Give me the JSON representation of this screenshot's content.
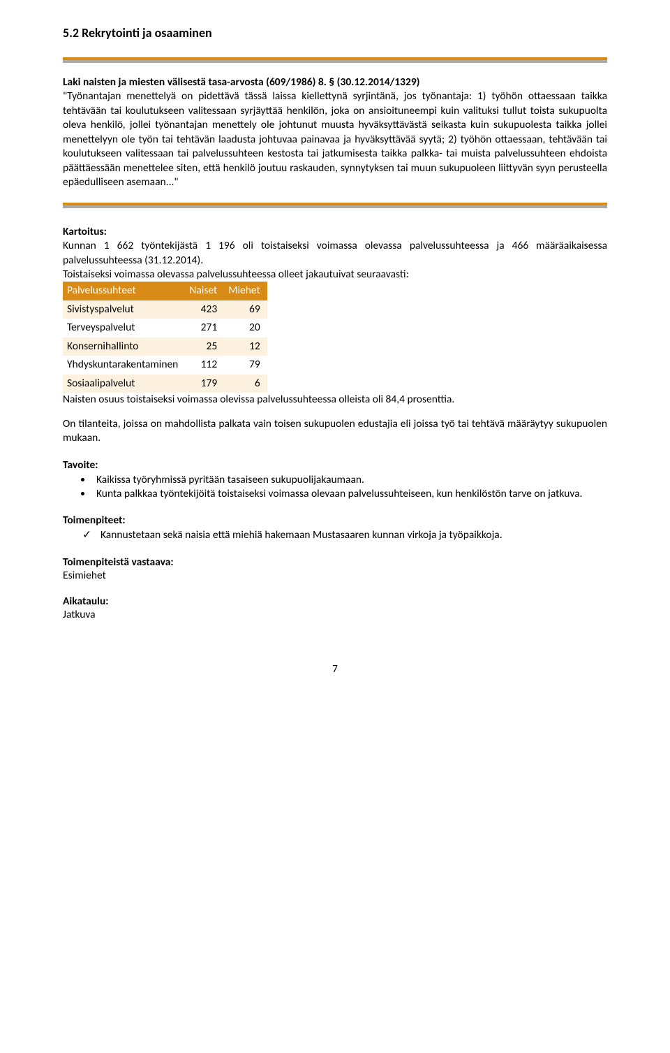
{
  "heading": "5.2  Rekrytointi ja osaaminen",
  "quote": {
    "title": "Laki naisten ja miesten välisestä tasa-arvosta (609/1986) 8. § (30.12.2014/1329)",
    "body": "\"Työnantajan menettelyä on pidettävä tässä laissa kiellettynä syrjintänä, jos työnantaja: 1) työhön ottaessaan taikka tehtävään tai koulutukseen valitessaan syrjäyttää henkilön, joka on ansioituneempi kuin valituksi tullut toista sukupuolta oleva henkilö, jollei työnantajan menettely ole johtunut muusta hyväksyttävästä seikasta kuin sukupuolesta taikka jollei menettelyyn ole työn tai tehtävän laadusta johtuvaa painavaa ja hyväksyttävää syytä; 2) työhön ottaessaan, tehtävään tai koulutukseen valitessaan tai palvelussuhteen kestosta tai jatkumisesta taikka palkka- tai muista palvelussuhteen ehdoista päättäessään menettelee siten, että henkilö joutuu raskauden, synnytyksen tai muun sukupuoleen liittyvän syyn perusteella epäedulliseen asemaan...\""
  },
  "kartoitus": {
    "label": "Kartoitus:",
    "intro": "Kunnan 1 662 työntekijästä 1 196 oli toistaiseksi voimassa olevassa palvelussuhteessa ja 466 määräaikaisessa palvelussuhteessa (31.12.2014).",
    "intro2": "Toistaiseksi voimassa olevassa palvelussuhteessa olleet jakautuivat seuraavasti:",
    "table": {
      "header_bg": "#d98b18",
      "header_color": "#ffffff",
      "alt_row_bg": "#fdf2df",
      "columns": [
        "Palvelussuhteet",
        "Naiset",
        "Miehet"
      ],
      "rows": [
        [
          "Sivistyspalvelut",
          "423",
          "69"
        ],
        [
          "Terveyspalvelut",
          "271",
          "20"
        ],
        [
          "Konsernihallinto",
          "25",
          "12"
        ],
        [
          "Yhdyskuntarakentaminen",
          "112",
          "79"
        ],
        [
          "Sosiaalipalvelut",
          "179",
          "6"
        ]
      ]
    },
    "after_table": "Naisten osuus toistaiseksi voimassa olevissa palvelussuhteessa olleista oli 84,4 prosenttia."
  },
  "situation": "On tilanteita, joissa on mahdollista palkata vain toisen sukupuolen edustajia eli joissa työ tai tehtävä määräytyy sukupuolen mukaan.",
  "tavoite": {
    "label": "Tavoite:",
    "items": [
      "Kaikissa työryhmissä pyritään tasaiseen sukupuolijakaumaan.",
      "Kunta palkkaa työntekijöitä toistaiseksi voimassa olevaan palvelussuhteiseen, kun henkilöstön tarve on jatkuva."
    ]
  },
  "toimenpiteet": {
    "label": "Toimenpiteet:",
    "items": [
      "Kannustetaan sekä naisia että miehiä hakemaan Mustasaaren kunnan virkoja ja työpaikkoja."
    ]
  },
  "vastaava": {
    "label": "Toimenpiteistä vastaava:",
    "value": "Esimiehet"
  },
  "aikataulu": {
    "label": "Aikataulu:",
    "value": "Jatkuva"
  },
  "page_number": "7"
}
